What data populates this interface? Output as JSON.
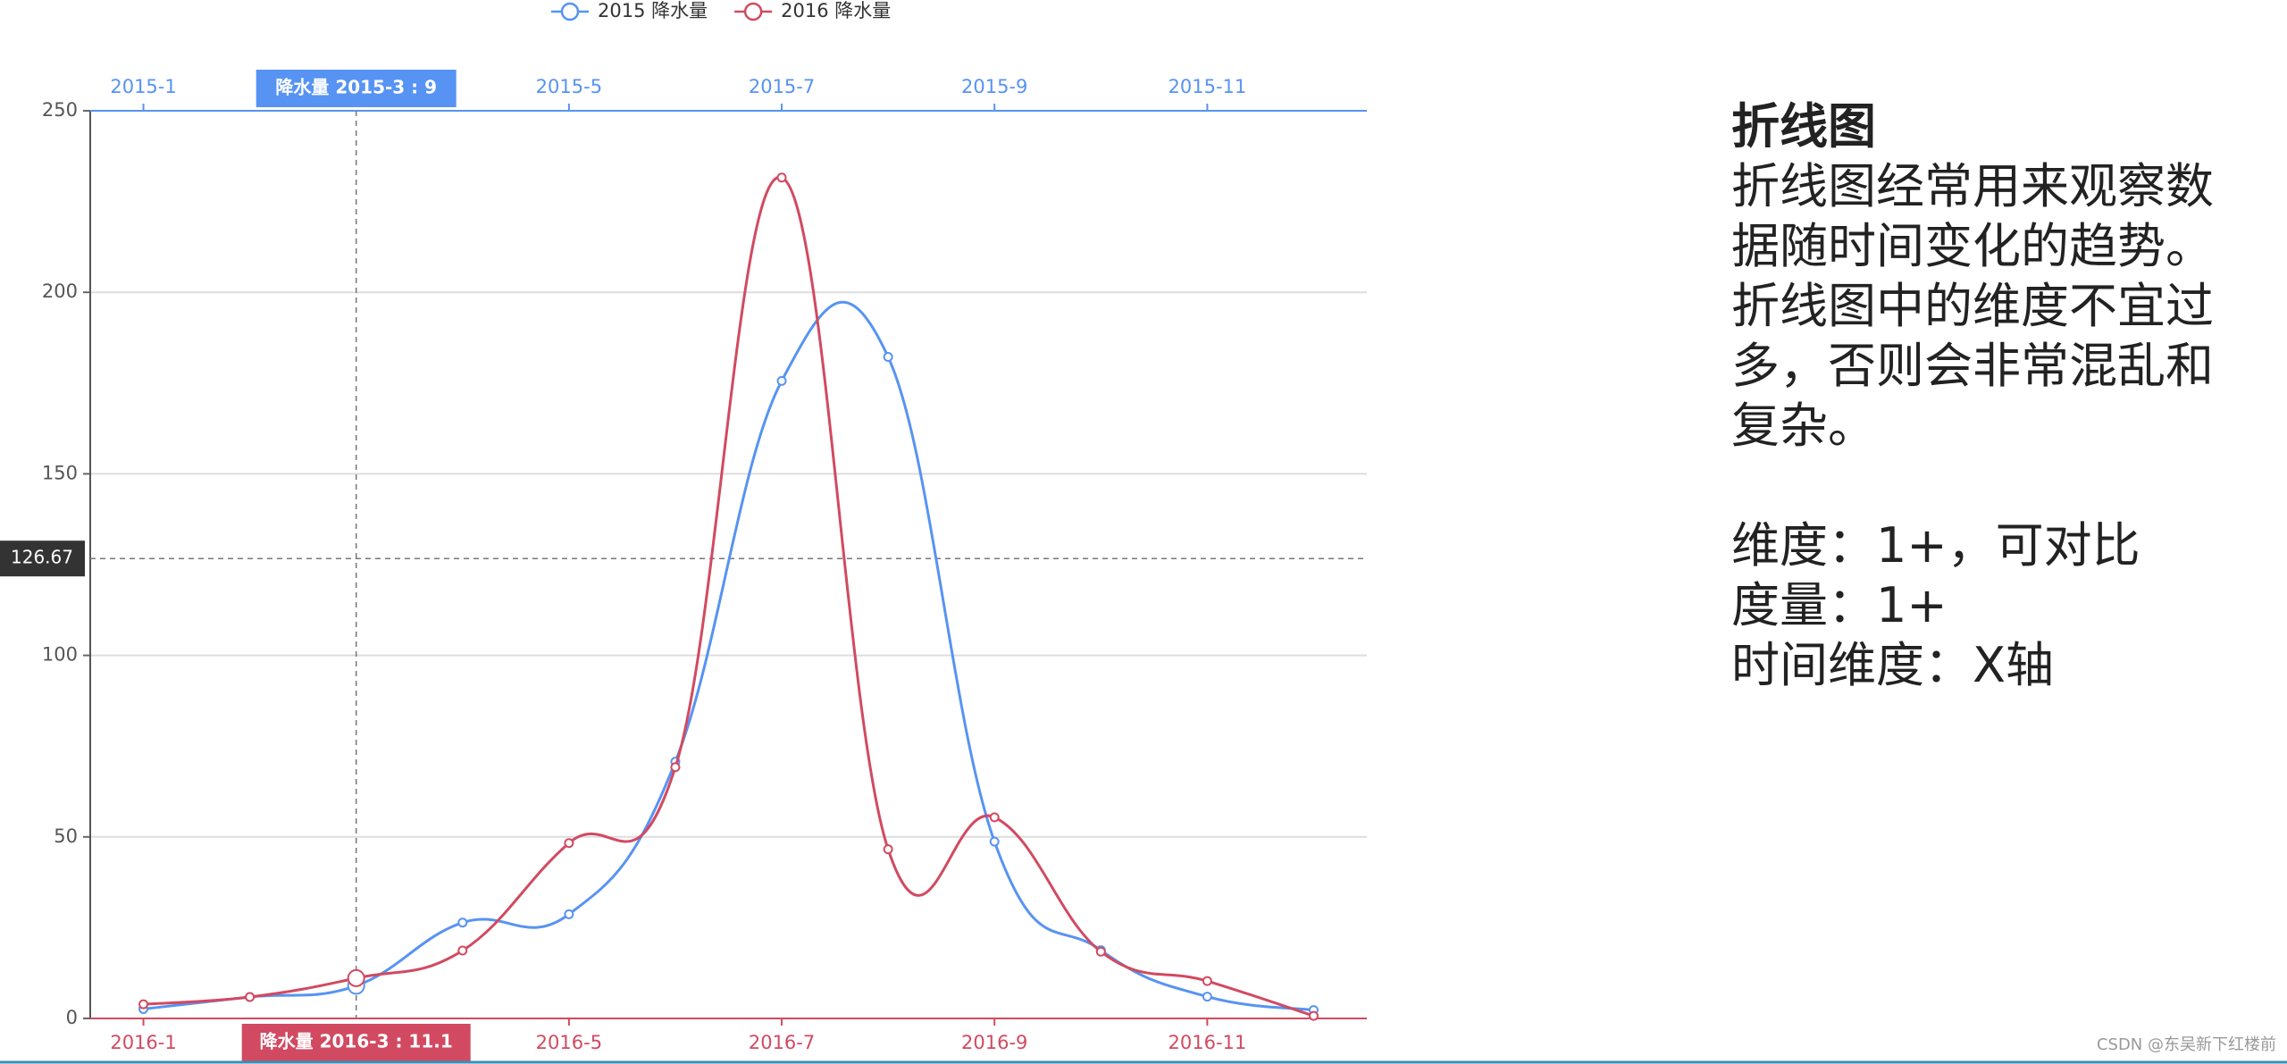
{
  "chart_data": {
    "type": "line",
    "legend": "top",
    "categories_top": [
      "2015-1",
      null,
      null,
      null,
      "2015-5",
      null,
      "2015-7",
      null,
      "2015-9",
      null,
      "2015-11",
      null
    ],
    "categories": [
      "2016-1",
      null,
      null,
      null,
      "2016-5",
      null,
      "2016-7",
      null,
      "2016-9",
      null,
      "2016-11",
      null
    ],
    "series": [
      {
        "name": "2015 降水量",
        "color": "#5793f3",
        "xaxis": "top",
        "values": [
          2.6,
          5.9,
          9.0,
          26.4,
          28.7,
          70.7,
          175.6,
          182.2,
          48.7,
          18.8,
          6.0,
          2.3
        ]
      },
      {
        "name": "2016 降水量",
        "color": "#d14a61",
        "xaxis": "bottom",
        "values": [
          3.9,
          5.9,
          11.1,
          18.7,
          48.3,
          69.2,
          231.6,
          46.6,
          55.4,
          18.4,
          10.3,
          0.7
        ]
      }
    ],
    "ylim": [
      0,
      250
    ],
    "yticks": [
      0,
      50,
      100,
      150,
      200,
      250
    ],
    "grid": true,
    "pointer": {
      "top_label": "降水量  2015-3 : 9",
      "bottom_label": "降水量  2016-3 : 11.1",
      "y": 126.67
    }
  },
  "side_panel": {
    "title": "折线图",
    "paragraphs": [
      [
        "折线图经常用来观察数",
        "据随时间变化的趋势。",
        "折线图中的维度不宜过",
        "多，否则会非常混乱和",
        "复杂。"
      ],
      [
        "维度：1+，可对比",
        "度量：1+",
        "时间维度：X轴"
      ]
    ]
  },
  "watermark": "CSDN @东吴新下红楼前"
}
